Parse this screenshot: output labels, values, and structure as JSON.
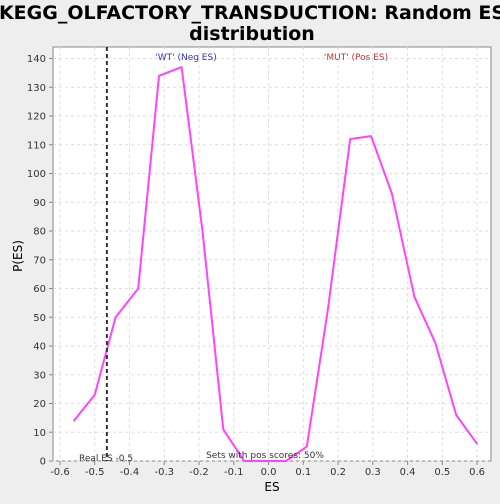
{
  "chart_data": {
    "type": "line",
    "title_lines": [
      "KEGG_OLFACTORY_TRANSDUCTION: Random ES",
      "distribution"
    ],
    "xlabel": "ES",
    "ylabel": "P(ES)",
    "xlim": [
      -0.62,
      0.64
    ],
    "ylim": [
      0,
      144
    ],
    "x_ticks": [
      -0.6,
      -0.5,
      -0.4,
      -0.3,
      -0.2,
      -0.1,
      0.0,
      0.1,
      0.2,
      0.3,
      0.4,
      0.5,
      0.6
    ],
    "x_tick_labels": [
      "-0.6",
      "-0.5",
      "-0.4",
      "-0.3",
      "-0.2",
      "-0.1",
      "0.0",
      "0.1",
      "0.2",
      "0.3",
      "0.4",
      "0.5",
      "0.6"
    ],
    "y_ticks": [
      0,
      10,
      20,
      30,
      40,
      50,
      60,
      70,
      80,
      90,
      100,
      110,
      120,
      130,
      140
    ],
    "y_tick_labels": [
      "0",
      "10",
      "20",
      "30",
      "40",
      "50",
      "60",
      "70",
      "80",
      "90",
      "100",
      "110",
      "120",
      "130",
      "140"
    ],
    "grid": true,
    "series": [
      {
        "color": "#ff44ff",
        "x": [
          -0.56,
          -0.5,
          -0.44,
          -0.375,
          -0.315,
          -0.25,
          -0.19,
          -0.13,
          -0.07,
          -0.01,
          0.05,
          0.11,
          0.17,
          0.235,
          0.295,
          0.355,
          0.42,
          0.48,
          0.54,
          0.6
        ],
        "y": [
          14,
          23,
          50,
          60,
          134,
          137,
          80,
          11,
          0,
          0,
          0,
          5,
          52,
          112,
          113,
          93,
          57,
          41,
          16,
          6
        ]
      }
    ],
    "annotations": {
      "neg_label": "'WT' (Neg ES)",
      "neg_color": "#3333cc",
      "pos_label": "'MUT' (Pos ES)",
      "pos_color": "#cc3333",
      "real_es_label": "Real ES -0.5",
      "real_es_x": -0.465,
      "pos_scores_label": "Sets with pos scores: 50%"
    }
  }
}
